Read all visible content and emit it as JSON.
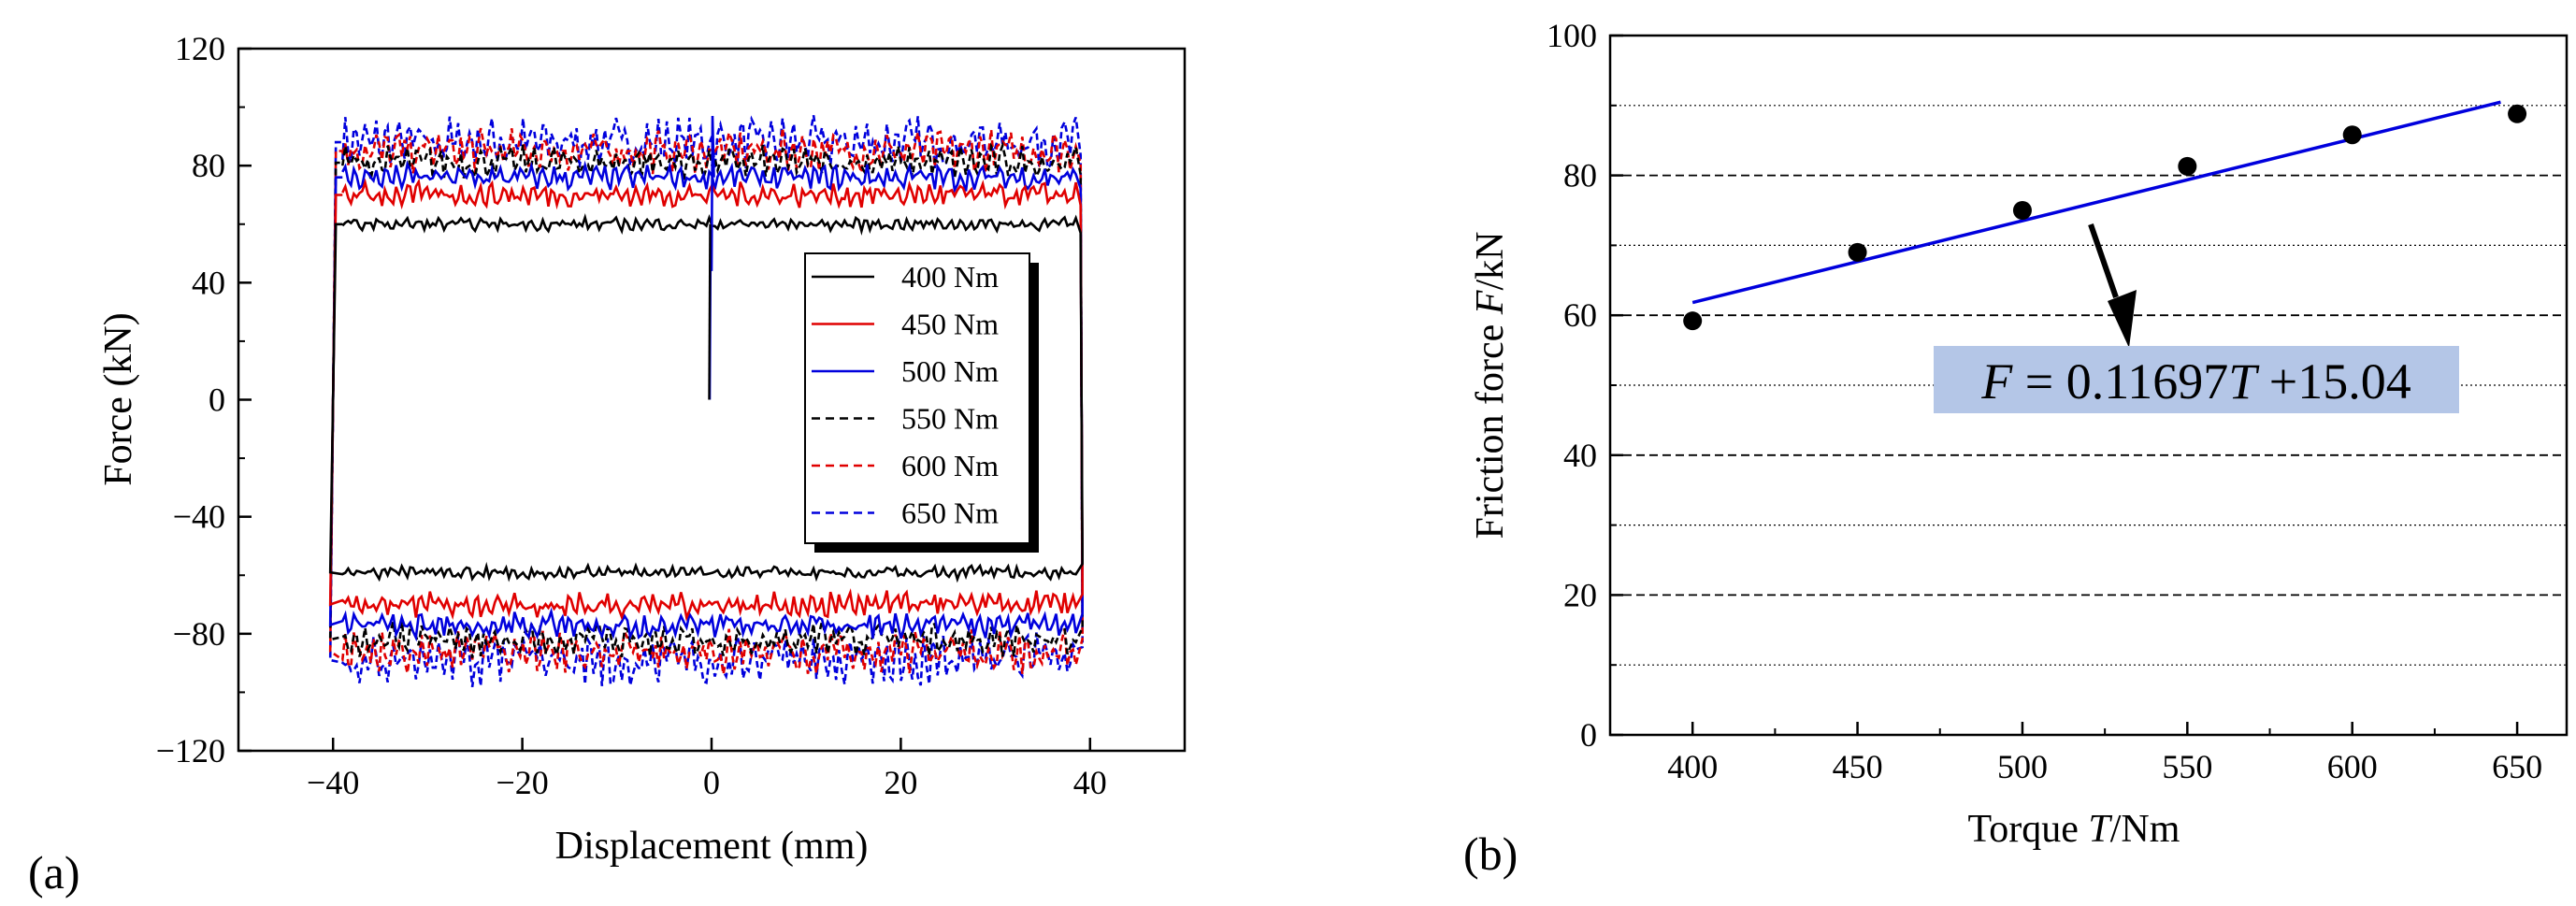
{
  "chart_data": [
    {
      "type": "line",
      "panel_label": "(a)",
      "xlabel": "Displacement (mm)",
      "ylabel": "Force (kN)",
      "xlim": [
        -50,
        50
      ],
      "ylim": [
        -120,
        120
      ],
      "x_ticks": [
        -40,
        -20,
        0,
        20,
        40
      ],
      "x_tick_labels": [
        "−40",
        "−20",
        "0",
        "20",
        "40"
      ],
      "y_ticks": [
        -120,
        -80,
        -40,
        0,
        40,
        80,
        120
      ],
      "y_tick_labels": [
        "−120",
        "−80",
        "−40",
        "0",
        "40",
        "80",
        "120"
      ],
      "displacement_range": [
        -40,
        39
      ],
      "legend_position": "center-right",
      "series": [
        {
          "name": "400 Nm",
          "color": "#000000",
          "dash": "solid",
          "force_upper": 60,
          "force_lower": -59,
          "noise": 1.5
        },
        {
          "name": "450 Nm",
          "color": "#e00000",
          "dash": "solid",
          "force_upper": 70,
          "force_lower": -70,
          "noise": 3
        },
        {
          "name": "500 Nm",
          "color": "#0000dd",
          "dash": "solid",
          "force_upper": 76,
          "force_lower": -77,
          "noise": 3
        },
        {
          "name": "550 Nm",
          "color": "#000000",
          "dash": "dashed",
          "force_upper": 81,
          "force_lower": -82,
          "noise": 4
        },
        {
          "name": "600 Nm",
          "color": "#e00000",
          "dash": "dashed",
          "force_upper": 85,
          "force_lower": -86,
          "noise": 5
        },
        {
          "name": "650 Nm",
          "color": "#0000dd",
          "dash": "dashed",
          "force_upper": 88,
          "force_lower": -89,
          "noise": 6
        }
      ]
    },
    {
      "type": "scatter",
      "panel_label": "(b)",
      "xlabel_parts": [
        "Torque ",
        "T",
        "/Nm"
      ],
      "ylabel_parts": [
        "Friction force ",
        "F",
        "/kN"
      ],
      "xlim": [
        375,
        665
      ],
      "ylim": [
        0,
        100
      ],
      "x_ticks": [
        400,
        450,
        500,
        550,
        600,
        650
      ],
      "y_ticks": [
        0,
        20,
        40,
        60,
        80,
        100
      ],
      "grid_major": [
        20,
        40,
        60,
        80
      ],
      "grid_minor": [
        10,
        30,
        50,
        70,
        90
      ],
      "x": [
        400,
        450,
        500,
        550,
        600,
        650
      ],
      "y": [
        59.2,
        69.0,
        75.0,
        81.3,
        85.8,
        88.8
      ],
      "fit": {
        "slope": 0.11697,
        "intercept": 15.04,
        "x_range": [
          400,
          645
        ],
        "color": "#0000dd"
      },
      "equation_parts": [
        "F",
        " = 0.11697",
        "T",
        " +15.04"
      ],
      "equation_box_color": "#b4c6e7"
    }
  ]
}
